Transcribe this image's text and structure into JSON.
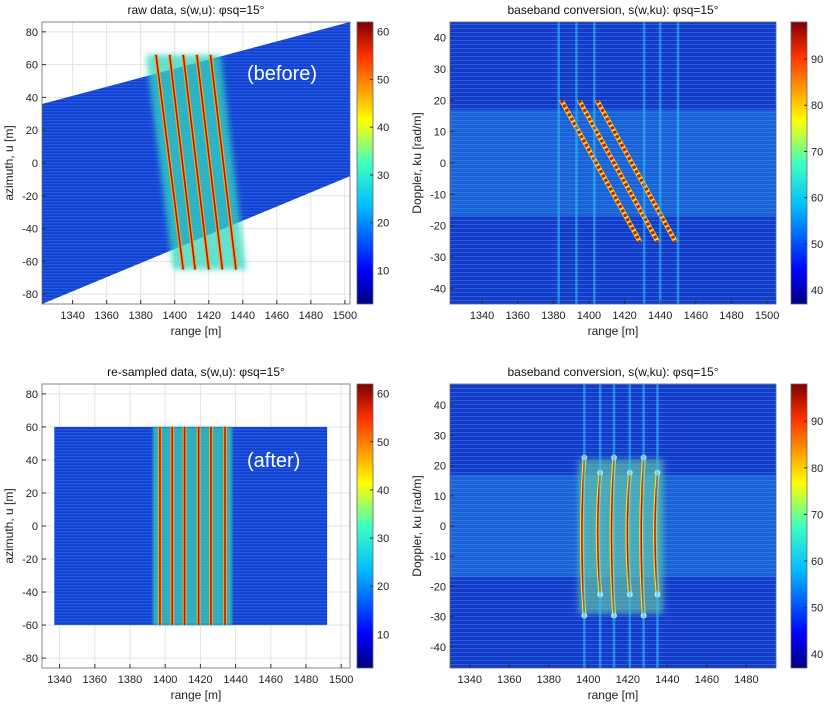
{
  "chart_data": [
    {
      "type": "heatmap",
      "title": "raw data, s(w,u): φsq=15°",
      "annotation": "(before)",
      "xlabel": "range [m]",
      "ylabel": "azimuth, u [m]",
      "xlim": [
        1322,
        1503
      ],
      "ylim": [
        -86,
        86
      ],
      "xticks": [
        "1340",
        "1360",
        "1380",
        "1400",
        "1420",
        "1440",
        "1460",
        "1480",
        "1500"
      ],
      "yticks": [
        "80",
        "60",
        "40",
        "20",
        "0",
        "-20",
        "-40",
        "-60",
        "-80"
      ],
      "colorbar_ticks": [
        "60",
        "50",
        "40",
        "30",
        "20",
        "10"
      ],
      "colorbar_range": [
        3,
        62
      ],
      "grid": true,
      "support": {
        "kind": "slanted_band",
        "start_range": 1322,
        "end_range": 1503,
        "bottom_at_start": -86,
        "top_at_start": 36,
        "bottom_at_end": -8,
        "top_at_end": 86
      },
      "features": [
        {
          "kind": "slanted_target_lines",
          "range_at_top": [
            1389,
            1397,
            1405,
            1413,
            1421
          ],
          "azimuth_top": 66,
          "range_at_bottom": [
            1405,
            1412,
            1420,
            1428,
            1436
          ],
          "azimuth_bottom": -65
        }
      ]
    },
    {
      "type": "heatmap",
      "title": "baseband conversion, s(w,ku): φsq=15°",
      "xlabel": "range [m]",
      "ylabel": "Doppler, ku [rad/m]",
      "xlim": [
        1322,
        1505
      ],
      "ylim": [
        -45,
        45
      ],
      "xticks": [
        "1340",
        "1360",
        "1380",
        "1400",
        "1420",
        "1440",
        "1460",
        "1480",
        "1500"
      ],
      "yticks": [
        "40",
        "30",
        "20",
        "10",
        "0",
        "-10",
        "-20",
        "-30",
        "-40"
      ],
      "colorbar_ticks": [
        "90",
        "80",
        "70",
        "60",
        "50",
        "40"
      ],
      "colorbar_range": [
        37,
        98
      ],
      "grid": false,
      "features": [
        {
          "kind": "slanted_bands",
          "range_at_top": [
            1384,
            1394,
            1404
          ],
          "doppler_top": 20,
          "range_at_bottom": [
            1428,
            1438,
            1448
          ],
          "doppler_bottom": -25
        },
        {
          "kind": "vertical_streaks",
          "range": [
            1383,
            1393,
            1403,
            1431,
            1440,
            1450
          ]
        }
      ]
    },
    {
      "type": "heatmap",
      "title": "re-sampled data, s(w,u): φsq=15°",
      "annotation": "(after)",
      "xlabel": "range [m]",
      "ylabel": "azimuth, u [m]",
      "xlim": [
        1330,
        1505
      ],
      "ylim": [
        -86,
        86
      ],
      "xticks": [
        "1340",
        "1360",
        "1380",
        "1400",
        "1420",
        "1440",
        "1460",
        "1480",
        "1500"
      ],
      "yticks": [
        "80",
        "60",
        "40",
        "20",
        "0",
        "-20",
        "-40",
        "-60",
        "-80"
      ],
      "colorbar_ticks": [
        "60",
        "50",
        "40",
        "30",
        "20",
        "10"
      ],
      "colorbar_range": [
        3,
        62
      ],
      "grid": true,
      "support": {
        "kind": "rectangle",
        "x": [
          1337,
          1492
        ],
        "y": [
          -60,
          60
        ]
      },
      "features": [
        {
          "kind": "vertical_target_lines",
          "range": [
            1397,
            1404,
            1411,
            1419,
            1426,
            1434
          ],
          "azimuth": [
            -60,
            60
          ]
        }
      ]
    },
    {
      "type": "heatmap",
      "title": "baseband conversion, s(w,ku): φsq=15°",
      "xlabel": "range [m]",
      "ylabel": "Doppler, ku [rad/m]",
      "xlim": [
        1330,
        1495
      ],
      "ylim": [
        -47,
        47
      ],
      "xticks": [
        "1340",
        "1360",
        "1380",
        "1400",
        "1420",
        "1440",
        "1460",
        "1480"
      ],
      "yticks": [
        "40",
        "30",
        "20",
        "10",
        "0",
        "-10",
        "-20",
        "-30",
        "-40"
      ],
      "colorbar_ticks": [
        "90",
        "80",
        "70",
        "60",
        "50",
        "40"
      ],
      "colorbar_range": [
        37,
        98
      ],
      "grid": false,
      "features": [
        {
          "kind": "curved_bands",
          "range": [
            1398,
            1406,
            1413,
            1421,
            1428,
            1435
          ],
          "doppler_top": [
            22,
            17,
            22,
            17,
            22,
            17
          ],
          "doppler_bottom": [
            -29,
            -22,
            -29,
            -22,
            -29,
            -22
          ]
        },
        {
          "kind": "vertical_streaks",
          "range": [
            1398,
            1406,
            1413,
            1421,
            1428,
            1435
          ]
        }
      ]
    }
  ]
}
